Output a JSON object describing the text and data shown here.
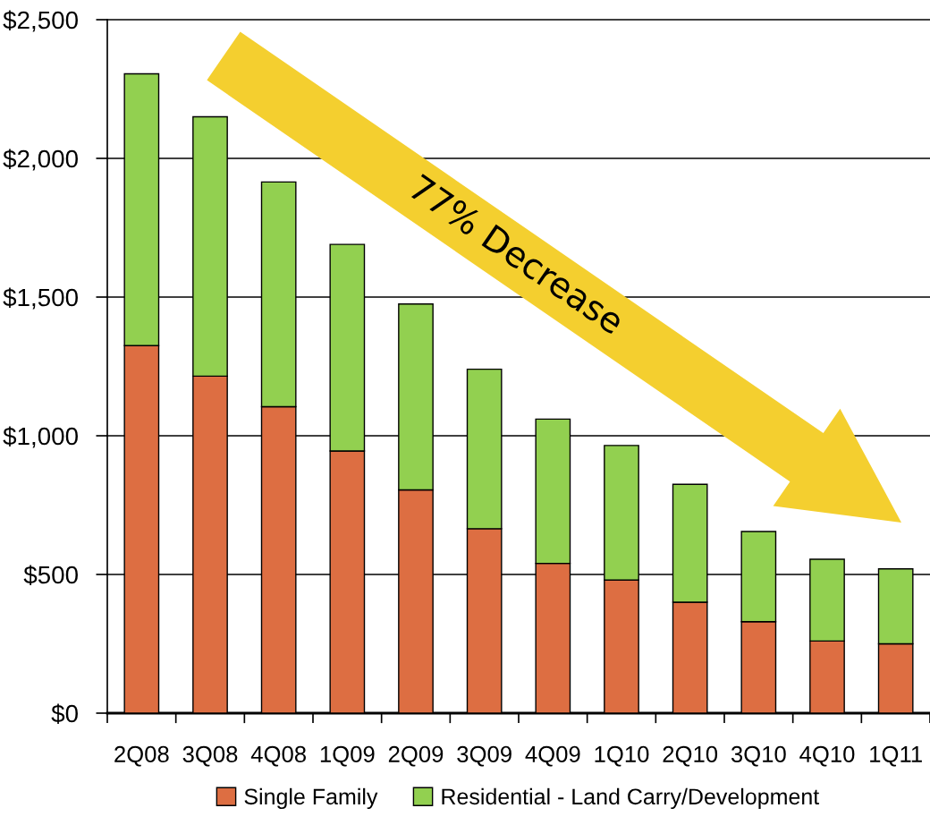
{
  "chart_data": {
    "type": "bar",
    "stacked": true,
    "categories": [
      "2Q08",
      "3Q08",
      "4Q08",
      "1Q09",
      "2Q09",
      "3Q09",
      "4Q09",
      "1Q10",
      "2Q10",
      "3Q10",
      "4Q10",
      "1Q11"
    ],
    "series": [
      {
        "name": "Single Family",
        "color": "#dd6e42",
        "values": [
          1325,
          1215,
          1105,
          945,
          805,
          665,
          540,
          480,
          400,
          330,
          260,
          250
        ]
      },
      {
        "name": "Residential - Land Carry/Development",
        "color": "#92d050",
        "values": [
          980,
          935,
          810,
          745,
          670,
          575,
          520,
          485,
          425,
          325,
          295,
          270
        ]
      }
    ],
    "ylim": [
      0,
      2500
    ],
    "yticks": [
      {
        "value": 0,
        "label": "$0"
      },
      {
        "value": 500,
        "label": "$500"
      },
      {
        "value": 1000,
        "label": "$1,000"
      },
      {
        "value": 1500,
        "label": "$1,500"
      },
      {
        "value": 2000,
        "label": "$2,000"
      },
      {
        "value": 2500,
        "label": "$2,500"
      }
    ],
    "grid": "y",
    "legend": "bottom",
    "annotations": [
      "77% Decrease"
    ]
  }
}
